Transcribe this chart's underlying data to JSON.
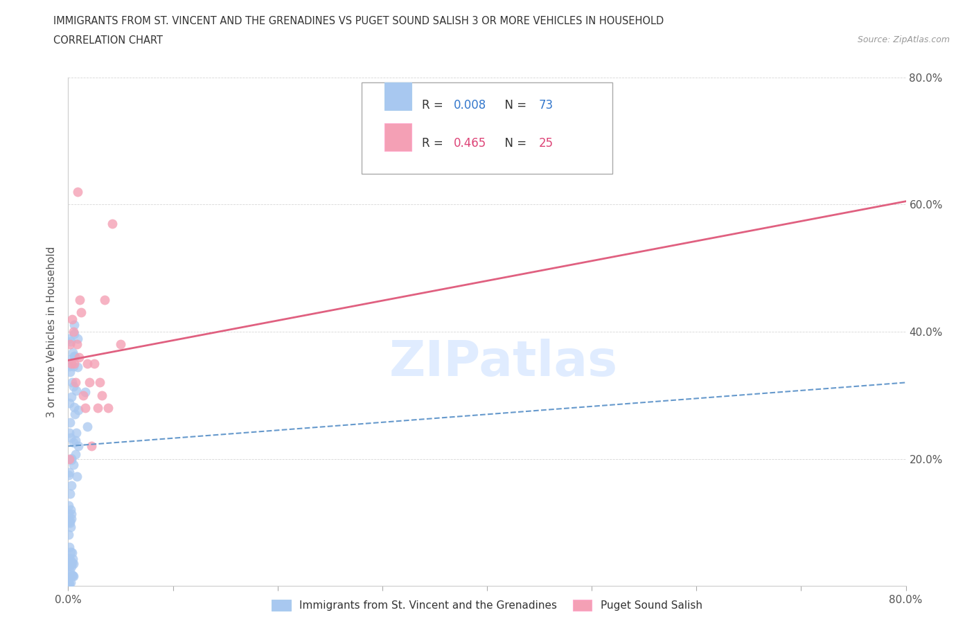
{
  "title_line1": "IMMIGRANTS FROM ST. VINCENT AND THE GRENADINES VS PUGET SOUND SALISH 3 OR MORE VEHICLES IN HOUSEHOLD",
  "title_line2": "CORRELATION CHART",
  "source_text": "Source: ZipAtlas.com",
  "ylabel": "3 or more Vehicles in Household",
  "xlim": [
    0.0,
    0.8
  ],
  "ylim": [
    0.0,
    0.8
  ],
  "blue_R": 0.008,
  "blue_N": 73,
  "pink_R": 0.465,
  "pink_N": 25,
  "blue_color": "#A8C8F0",
  "pink_color": "#F4A0B5",
  "blue_line_color": "#6699CC",
  "pink_line_color": "#E06080",
  "blue_line_start_y": 0.22,
  "blue_line_end_y": 0.32,
  "pink_line_start_y": 0.355,
  "pink_line_end_y": 0.605,
  "watermark_text": "ZIPatlas",
  "legend_R_color_blue": "#3377CC",
  "legend_N_color_blue": "#3377CC",
  "legend_R_color_pink": "#DD4477",
  "legend_N_color_pink": "#DD4477"
}
